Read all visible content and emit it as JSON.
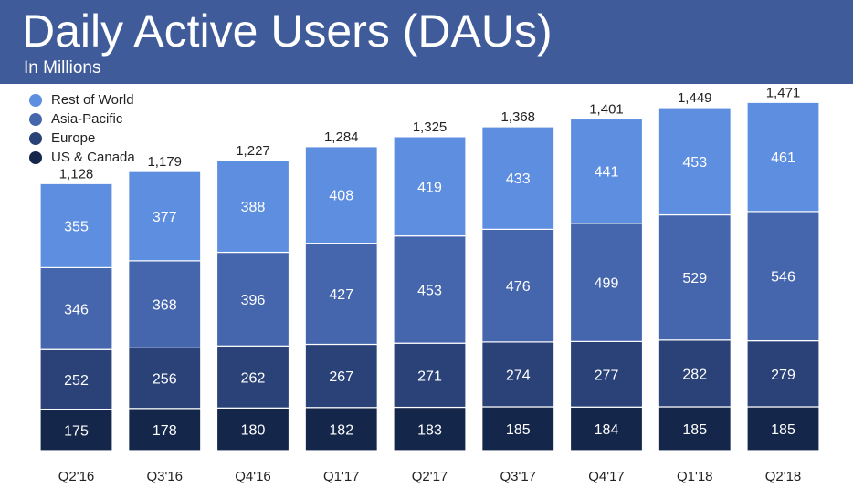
{
  "header": {
    "title": "Daily Active Users (DAUs)",
    "subtitle": "In Millions"
  },
  "chart_data": {
    "type": "bar",
    "stacked": true,
    "title": "Daily Active Users (DAUs)",
    "subtitle": "In Millions",
    "categories": [
      "Q2'16",
      "Q3'16",
      "Q4'16",
      "Q1'17",
      "Q2'17",
      "Q3'17",
      "Q4'17",
      "Q1'18",
      "Q2'18"
    ],
    "totals": [
      "1,128",
      "1,179",
      "1,227",
      "1,284",
      "1,325",
      "1,368",
      "1,401",
      "1,449",
      "1,471"
    ],
    "series": [
      {
        "name": "US & Canada",
        "color": "#14264a",
        "values": [
          175,
          178,
          180,
          182,
          183,
          185,
          184,
          185,
          185
        ]
      },
      {
        "name": "Europe",
        "color": "#2a4278",
        "values": [
          252,
          256,
          262,
          267,
          271,
          274,
          277,
          282,
          279
        ]
      },
      {
        "name": "Asia-Pacific",
        "color": "#4566ad",
        "values": [
          346,
          368,
          396,
          427,
          453,
          476,
          499,
          529,
          546
        ]
      },
      {
        "name": "Rest of World",
        "color": "#5e8ee0",
        "values": [
          355,
          377,
          388,
          408,
          419,
          433,
          441,
          453,
          461
        ]
      }
    ],
    "legend_order": [
      "Rest of World",
      "Asia-Pacific",
      "Europe",
      "US & Canada"
    ],
    "legend_position": "top-left",
    "grid": false
  }
}
